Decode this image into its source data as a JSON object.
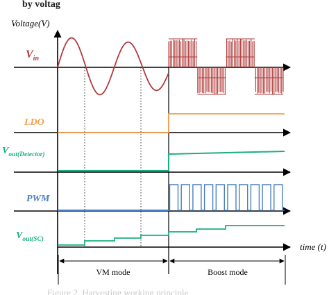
{
  "header_partial": "by voltag",
  "axis": {
    "y_label": "Voltage(V)",
    "x_label": "time (t)"
  },
  "signals": [
    {
      "key": "vin",
      "label": "V",
      "sub": "in",
      "color": "#b23a3a"
    },
    {
      "key": "ldo",
      "label": "LDO",
      "sub": "",
      "color": "#f0a04b"
    },
    {
      "key": "vdet",
      "label": "V",
      "sub": "out(Detector)",
      "color": "#19b07c"
    },
    {
      "key": "pwm",
      "label": "PWM",
      "sub": "",
      "color": "#4a7fbf"
    },
    {
      "key": "vsc",
      "label": "V",
      "sub": "out(SC)",
      "color": "#19b07c"
    }
  ],
  "modes": {
    "vm": "VM mode",
    "boost": "Boost mode"
  },
  "caption_faded": "Figure 2. Harvesting working principle"
}
